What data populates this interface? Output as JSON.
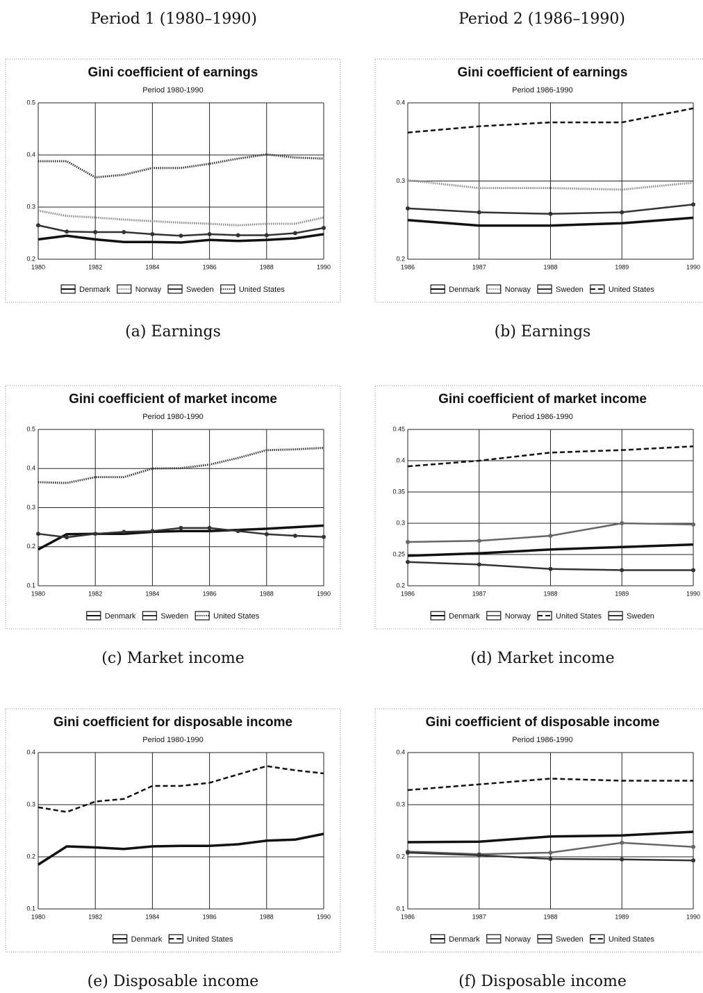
{
  "headings": [
    "Period 1 (1980–1990)",
    "Period 2 (1986–1990)"
  ],
  "chart_data": [
    {
      "type": "line",
      "title": "Gini coefficient of earnings",
      "subtitle": "Period 1980-1990",
      "caption": "(a) Earnings",
      "x": [
        1980,
        1981,
        1982,
        1983,
        1984,
        1985,
        1986,
        1987,
        1988,
        1989,
        1990
      ],
      "xlim": [
        1980,
        1990
      ],
      "xticks": [
        1980,
        1982,
        1984,
        1986,
        1988,
        1990
      ],
      "ylim": [
        0.2,
        0.5
      ],
      "yticks": [
        0.2,
        0.3,
        0.4,
        0.5
      ],
      "grid": true,
      "series": [
        {
          "name": "Denmark",
          "color": "#111111",
          "line_style": "solid",
          "values": [
            0.238,
            0.245,
            0.238,
            0.233,
            0.233,
            0.232,
            0.237,
            0.235,
            0.237,
            0.24,
            0.248
          ]
        },
        {
          "name": "Norway",
          "color": "#888888",
          "line_style": "dotted",
          "values": [
            0.293,
            0.283,
            0.28,
            0.276,
            0.273,
            0.27,
            0.268,
            0.265,
            0.268,
            0.268,
            0.28
          ]
        },
        {
          "name": "Sweden",
          "color": "#333333",
          "line_style": "marker",
          "values": [
            0.265,
            0.253,
            0.252,
            0.252,
            0.248,
            0.245,
            0.248,
            0.246,
            0.246,
            0.25,
            0.26
          ]
        },
        {
          "name": "United States",
          "color": "#333333",
          "line_style": "dotted",
          "values": [
            0.388,
            0.388,
            0.357,
            0.362,
            0.375,
            0.375,
            0.383,
            0.393,
            0.401,
            0.395,
            0.393
          ]
        }
      ]
    },
    {
      "type": "line",
      "title": "Gini coefficient of earnings",
      "subtitle": "Period 1986-1990",
      "caption": "(b) Earnings",
      "x": [
        1986,
        1987,
        1988,
        1989,
        1990
      ],
      "xlim": [
        1986,
        1990
      ],
      "xticks": [
        1986,
        1987,
        1988,
        1989,
        1990
      ],
      "ylim": [
        0.2,
        0.4
      ],
      "yticks": [
        0.2,
        0.3,
        0.4
      ],
      "grid": true,
      "series": [
        {
          "name": "Denmark",
          "color": "#111111",
          "line_style": "solid",
          "values": [
            0.25,
            0.243,
            0.243,
            0.246,
            0.253
          ]
        },
        {
          "name": "Norway",
          "color": "#888888",
          "line_style": "dotted",
          "values": [
            0.301,
            0.291,
            0.291,
            0.289,
            0.298
          ]
        },
        {
          "name": "Sweden",
          "color": "#333333",
          "line_style": "marker",
          "values": [
            0.265,
            0.26,
            0.258,
            0.26,
            0.27
          ]
        },
        {
          "name": "United States",
          "color": "#111111",
          "line_style": "dashed",
          "values": [
            0.362,
            0.37,
            0.375,
            0.375,
            0.393
          ]
        }
      ]
    },
    {
      "type": "line",
      "title": "Gini coefficient of market income",
      "subtitle": "Period 1980-1990",
      "caption": "(c) Market income",
      "x": [
        1980,
        1981,
        1982,
        1983,
        1984,
        1985,
        1986,
        1987,
        1988,
        1989,
        1990
      ],
      "xlim": [
        1980,
        1990
      ],
      "xticks": [
        1980,
        1982,
        1984,
        1986,
        1988,
        1990
      ],
      "ylim": [
        0.1,
        0.5
      ],
      "yticks": [
        0.1,
        0.2,
        0.3,
        0.4,
        0.5
      ],
      "grid": true,
      "series": [
        {
          "name": "Denmark",
          "color": "#111111",
          "line_style": "solid",
          "values": [
            0.193,
            0.232,
            0.233,
            0.233,
            0.238,
            0.24,
            0.24,
            0.243,
            0.246,
            0.25,
            0.254
          ]
        },
        {
          "name": "Sweden",
          "color": "#333333",
          "line_style": "marker",
          "values": [
            0.233,
            0.224,
            0.233,
            0.238,
            0.24,
            0.248,
            0.248,
            0.24,
            0.232,
            0.228,
            0.225
          ]
        },
        {
          "name": "United States",
          "color": "#333333",
          "line_style": "dotted",
          "values": [
            0.365,
            0.363,
            0.378,
            0.378,
            0.4,
            0.401,
            0.41,
            0.427,
            0.447,
            0.449,
            0.453
          ]
        }
      ]
    },
    {
      "type": "line",
      "title": "Gini coefficient of market income",
      "subtitle": "Period 1986-1990",
      "caption": "(d) Market income",
      "x": [
        1986,
        1987,
        1988,
        1989,
        1990
      ],
      "xlim": [
        1986,
        1990
      ],
      "xticks": [
        1986,
        1987,
        1988,
        1989,
        1990
      ],
      "ylim": [
        0.2,
        0.45
      ],
      "yticks": [
        0.2,
        0.25,
        0.3,
        0.35,
        0.4,
        0.45
      ],
      "grid": true,
      "series": [
        {
          "name": "Denmark",
          "color": "#111111",
          "line_style": "solid",
          "values": [
            0.248,
            0.252,
            0.258,
            0.262,
            0.266
          ]
        },
        {
          "name": "Norway",
          "color": "#666666",
          "line_style": "marker",
          "values": [
            0.27,
            0.272,
            0.28,
            0.3,
            0.298
          ]
        },
        {
          "name": "United States",
          "color": "#111111",
          "line_style": "dashed",
          "values": [
            0.391,
            0.4,
            0.413,
            0.417,
            0.423
          ]
        },
        {
          "name": "Sweden",
          "color": "#333333",
          "line_style": "marker",
          "values": [
            0.238,
            0.234,
            0.227,
            0.225,
            0.225
          ]
        }
      ]
    },
    {
      "type": "line",
      "title": "Gini coefficient for disposable income",
      "subtitle": "Period 1980-1990",
      "caption": "(e) Disposable income",
      "x": [
        1980,
        1981,
        1982,
        1983,
        1984,
        1985,
        1986,
        1987,
        1988,
        1989,
        1990
      ],
      "xlim": [
        1980,
        1990
      ],
      "xticks": [
        1980,
        1982,
        1984,
        1986,
        1988,
        1990
      ],
      "ylim": [
        0.1,
        0.4
      ],
      "yticks": [
        0.1,
        0.2,
        0.3,
        0.4
      ],
      "grid": true,
      "series": [
        {
          "name": "Denmark",
          "color": "#111111",
          "line_style": "solid",
          "values": [
            0.185,
            0.22,
            0.218,
            0.215,
            0.22,
            0.221,
            0.221,
            0.224,
            0.231,
            0.233,
            0.244
          ]
        },
        {
          "name": "United States",
          "color": "#111111",
          "line_style": "dashed",
          "values": [
            0.295,
            0.286,
            0.306,
            0.311,
            0.336,
            0.336,
            0.342,
            0.358,
            0.374,
            0.366,
            0.36
          ]
        }
      ]
    },
    {
      "type": "line",
      "title": "Gini coefficient of disposable income",
      "subtitle": "Period 1986-1990",
      "caption": "(f) Disposable income",
      "x": [
        1986,
        1987,
        1988,
        1989,
        1990
      ],
      "xlim": [
        1986,
        1990
      ],
      "xticks": [
        1986,
        1987,
        1988,
        1989,
        1990
      ],
      "ylim": [
        0.1,
        0.4
      ],
      "yticks": [
        0.1,
        0.2,
        0.3,
        0.4
      ],
      "grid": true,
      "series": [
        {
          "name": "Denmark",
          "color": "#111111",
          "line_style": "solid",
          "values": [
            0.228,
            0.229,
            0.239,
            0.241,
            0.248
          ]
        },
        {
          "name": "Norway",
          "color": "#666666",
          "line_style": "marker",
          "values": [
            0.21,
            0.205,
            0.208,
            0.227,
            0.219
          ]
        },
        {
          "name": "Sweden",
          "color": "#333333",
          "line_style": "marker",
          "values": [
            0.208,
            0.203,
            0.196,
            0.195,
            0.193
          ]
        },
        {
          "name": "United States",
          "color": "#111111",
          "line_style": "dashed",
          "values": [
            0.328,
            0.339,
            0.35,
            0.346,
            0.346
          ]
        }
      ]
    }
  ]
}
